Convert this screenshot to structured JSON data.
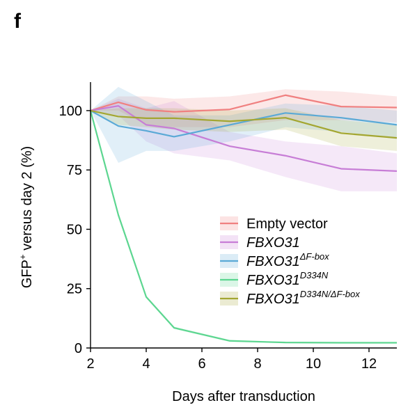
{
  "panel_label": "f",
  "chart_data": {
    "type": "line",
    "xlabel": "Days after transduction",
    "ylabel_main": "GFP",
    "ylabel_sup": "+",
    "ylabel_rest": " versus day 2 (%)",
    "xlim": [
      2,
      13
    ],
    "ylim": [
      0,
      112
    ],
    "xticks": [
      "2",
      "4",
      "6",
      "8",
      "10",
      "12"
    ],
    "yticks": [
      "0",
      "25",
      "50",
      "75",
      "100"
    ],
    "grid": false,
    "legend_position": "center-right",
    "series": [
      {
        "name": "Empty vector",
        "name_sup": "",
        "italic": false,
        "color": "#f08080",
        "x": [
          2,
          3,
          4,
          5,
          7,
          9,
          11,
          13
        ],
        "y": [
          100,
          103.5,
          100.3,
          99.5,
          100.5,
          106.5,
          101.7,
          101.3
        ],
        "lower": [
          100,
          100,
          94,
          93,
          93,
          96,
          96,
          95
        ],
        "upper": [
          100,
          106,
          106,
          105,
          106,
          109,
          108,
          106
        ]
      },
      {
        "name": "FBXO31",
        "name_sup": "",
        "italic": true,
        "color": "#c77dd6",
        "x": [
          2,
          3,
          4,
          5,
          7,
          9,
          11,
          13
        ],
        "y": [
          100,
          102,
          94,
          92.5,
          85,
          81,
          75.5,
          74.5
        ],
        "lower": [
          100,
          98,
          87,
          82,
          79,
          72,
          66,
          66
        ],
        "upper": [
          100,
          105,
          101,
          104,
          91,
          87,
          85,
          82
        ]
      },
      {
        "name": "FBXO31",
        "name_sup": "ΔF-box",
        "italic": true,
        "color": "#5aa9d6",
        "x": [
          2,
          3,
          4,
          5,
          7,
          9,
          11,
          13
        ],
        "y": [
          100,
          93.5,
          91.5,
          89,
          94,
          99,
          97,
          94
        ],
        "lower": [
          100,
          78,
          83,
          83,
          87,
          93,
          91,
          88
        ],
        "upper": [
          100,
          110,
          104,
          98,
          98,
          103,
          102,
          100
        ]
      },
      {
        "name": "FBXO31",
        "name_sup": "D334N",
        "italic": true,
        "color": "#5cd690",
        "x": [
          2,
          3,
          4,
          5,
          7,
          9,
          11,
          13
        ],
        "y": [
          100,
          56,
          21.5,
          8.5,
          3,
          2.3,
          2.2,
          2.2
        ],
        "lower": [
          100,
          55,
          21,
          8,
          2.6,
          2,
          1.9,
          1.9
        ],
        "upper": [
          100,
          57,
          22,
          9,
          3.4,
          2.6,
          2.5,
          2.5
        ]
      },
      {
        "name": "FBXO31",
        "name_sup": "D334N/ΔF-box",
        "italic": true,
        "color": "#a3a630",
        "x": [
          2,
          3,
          4,
          5,
          7,
          9,
          11,
          13
        ],
        "y": [
          100,
          97.5,
          96.8,
          96.8,
          95.5,
          97,
          90.5,
          88.5
        ],
        "lower": [
          100,
          94,
          93,
          92,
          91,
          92,
          85,
          83
        ],
        "upper": [
          100,
          101,
          101,
          101,
          100,
          101,
          96,
          94
        ]
      }
    ]
  }
}
